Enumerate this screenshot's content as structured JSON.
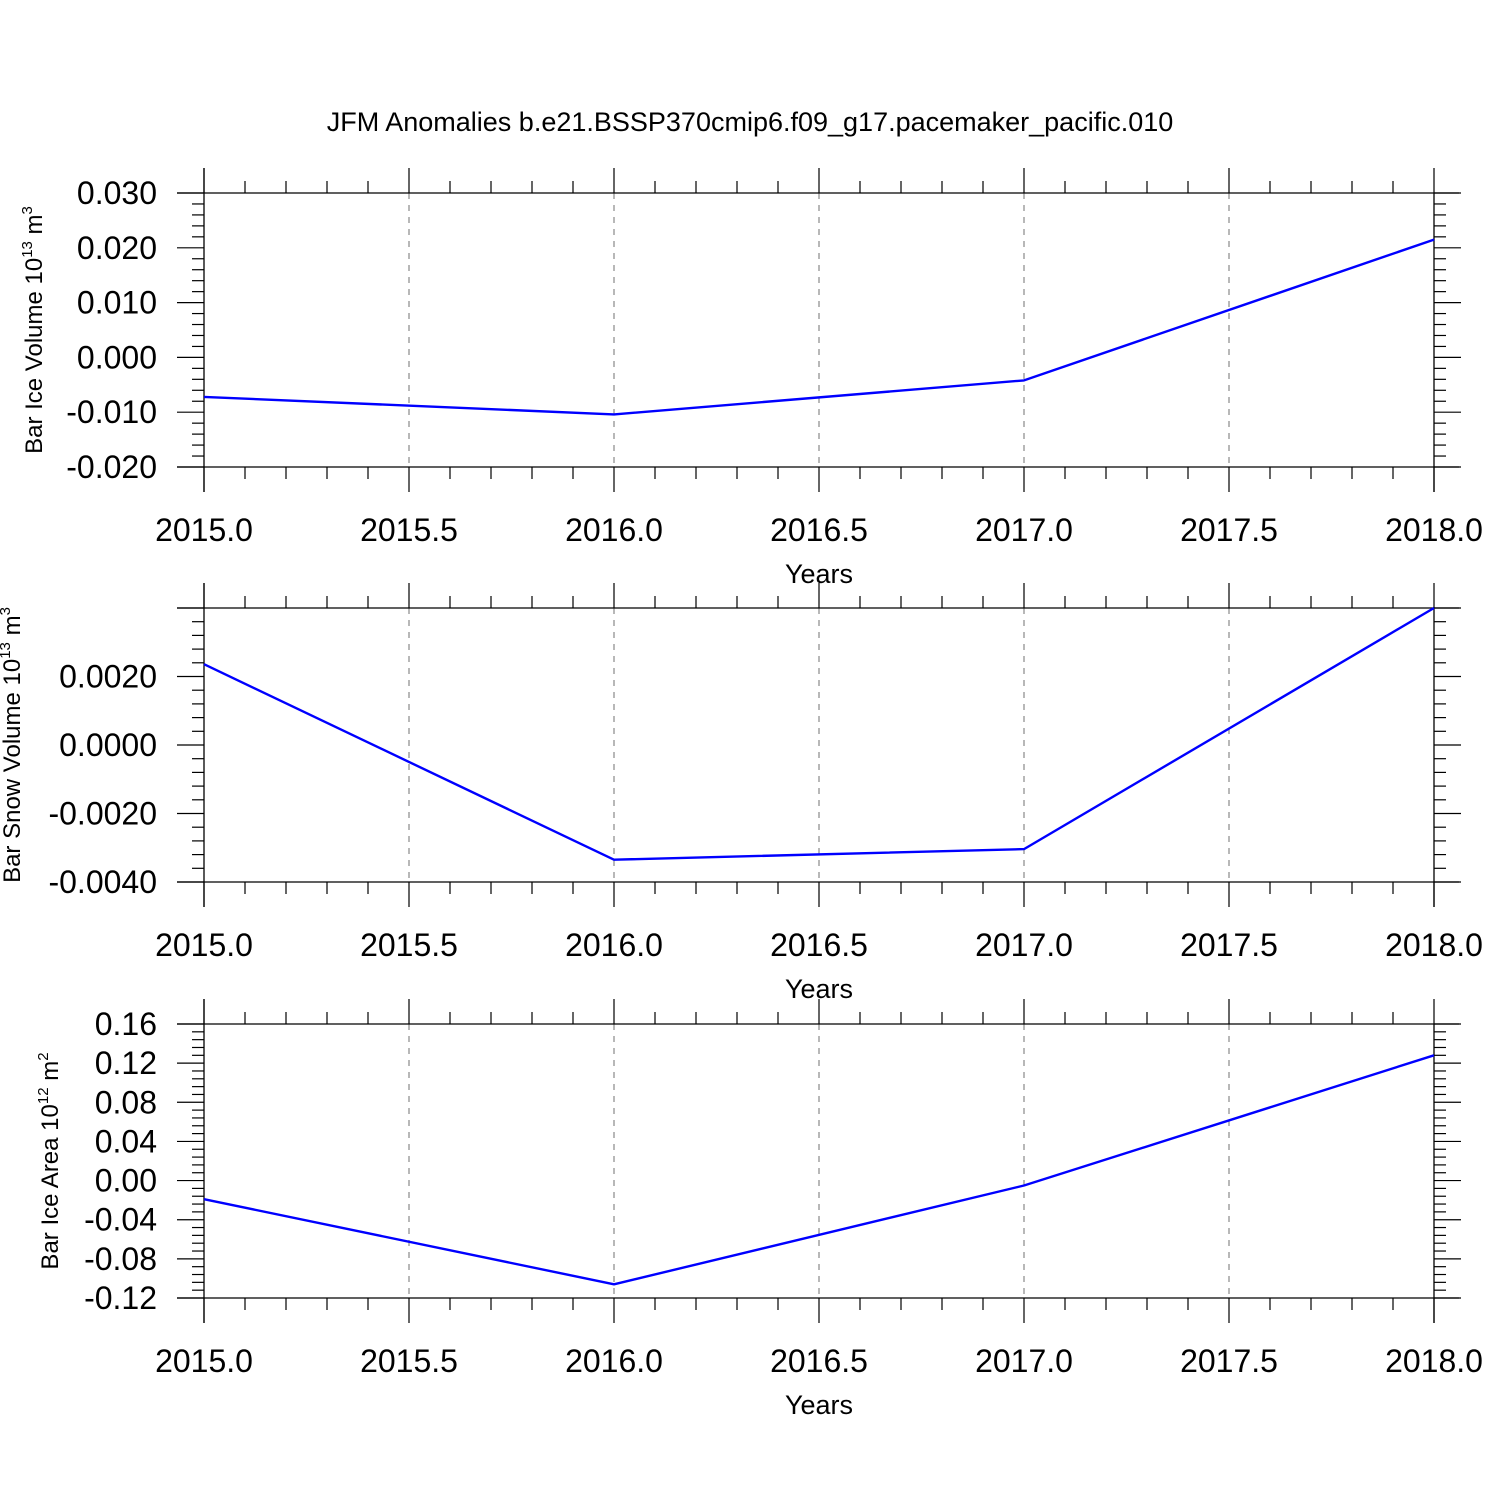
{
  "title": "JFM Anomalies b.e21.BSSP370cmip6.f09_g17.pacemaker_pacific.010",
  "colors": {
    "line": "#0000ff",
    "axis": "#000000",
    "grid": "#888888"
  },
  "chart_data": [
    {
      "type": "line",
      "title": "",
      "ylabel": {
        "text": "Bar Ice Volume 10",
        "sup1": "13",
        "unit": " m",
        "sup2": "3"
      },
      "xlabel": "Years",
      "x": [
        2015.0,
        2016.0,
        2017.0,
        2018.0
      ],
      "series": [
        {
          "values": [
            -0.0072,
            -0.0104,
            -0.0042,
            0.0215
          ]
        }
      ],
      "xlim": [
        2015.0,
        2018.0
      ],
      "ylim": [
        -0.02,
        0.03
      ],
      "xticks": [
        2015.0,
        2015.5,
        2016.0,
        2016.5,
        2017.0,
        2017.5,
        2018.0
      ],
      "xtick_labels": [
        "2015.0",
        "2015.5",
        "2016.0",
        "2016.5",
        "2017.0",
        "2017.5",
        "2018.0"
      ],
      "yticks": [
        -0.02,
        -0.01,
        0.0,
        0.01,
        0.02,
        0.03
      ],
      "ytick_labels": [
        "-0.020",
        "-0.010",
        "0.000",
        "0.010",
        "0.020",
        "0.030"
      ],
      "grid": "vertical dashed"
    },
    {
      "type": "line",
      "title": "",
      "ylabel": {
        "text": "Bar Snow Volume 10",
        "sup1": "13",
        "unit": " m",
        "sup2": "3"
      },
      "xlabel": "Years",
      "x": [
        2015.0,
        2016.0,
        2017.0,
        2018.0
      ],
      "series": [
        {
          "values": [
            0.00236,
            -0.00335,
            -0.00304,
            0.004
          ]
        }
      ],
      "xlim": [
        2015.0,
        2018.0
      ],
      "ylim": [
        -0.004,
        0.004
      ],
      "xticks": [
        2015.0,
        2015.5,
        2016.0,
        2016.5,
        2017.0,
        2017.5,
        2018.0
      ],
      "xtick_labels": [
        "2015.0",
        "2015.5",
        "2016.0",
        "2016.5",
        "2017.0",
        "2017.5",
        "2018.0"
      ],
      "yticks": [
        -0.004,
        -0.002,
        0.0,
        0.002
      ],
      "ytick_labels": [
        "-0.0040",
        "-0.0020",
        "0.0000",
        "0.0020"
      ],
      "grid": "vertical dashed"
    },
    {
      "type": "line",
      "title": "",
      "ylabel": {
        "text": "Bar Ice Area 10",
        "sup1": "12",
        "unit": " m",
        "sup2": "2"
      },
      "xlabel": "Years",
      "x": [
        2015.0,
        2016.0,
        2017.0,
        2018.0
      ],
      "series": [
        {
          "values": [
            -0.019,
            -0.106,
            -0.005,
            0.128
          ]
        }
      ],
      "xlim": [
        2015.0,
        2018.0
      ],
      "ylim": [
        -0.12,
        0.16
      ],
      "xticks": [
        2015.0,
        2015.5,
        2016.0,
        2016.5,
        2017.0,
        2017.5,
        2018.0
      ],
      "xtick_labels": [
        "2015.0",
        "2015.5",
        "2016.0",
        "2016.5",
        "2017.0",
        "2017.5",
        "2018.0"
      ],
      "yticks": [
        -0.12,
        -0.08,
        -0.04,
        0.0,
        0.04,
        0.08,
        0.12,
        0.16
      ],
      "ytick_labels": [
        "-0.12",
        "-0.08",
        "-0.04",
        "0.00",
        "0.04",
        "0.08",
        "0.12",
        "0.16"
      ],
      "grid": "vertical dashed"
    }
  ]
}
